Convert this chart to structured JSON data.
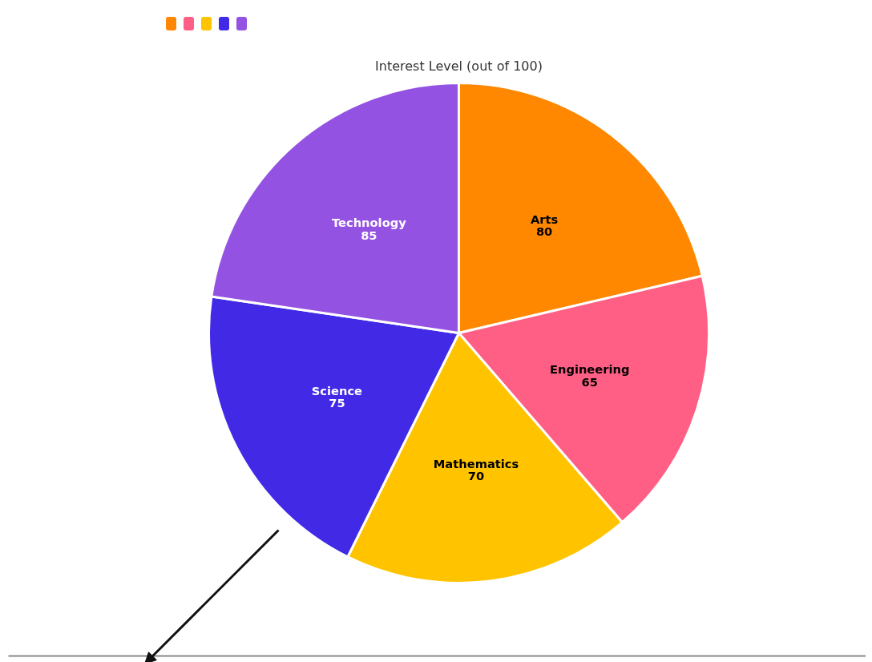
{
  "chart_data": {
    "type": "pie",
    "title": "Interest Level (out of 100)",
    "categories": [
      "Arts",
      "Engineering",
      "Mathematics",
      "Science",
      "Technology"
    ],
    "values": [
      80,
      65,
      70,
      75,
      85
    ],
    "colors": [
      "#ff8800",
      "#ff5f84",
      "#ffc300",
      "#4129e6",
      "#9452e2"
    ],
    "data_labels": true
  }
}
